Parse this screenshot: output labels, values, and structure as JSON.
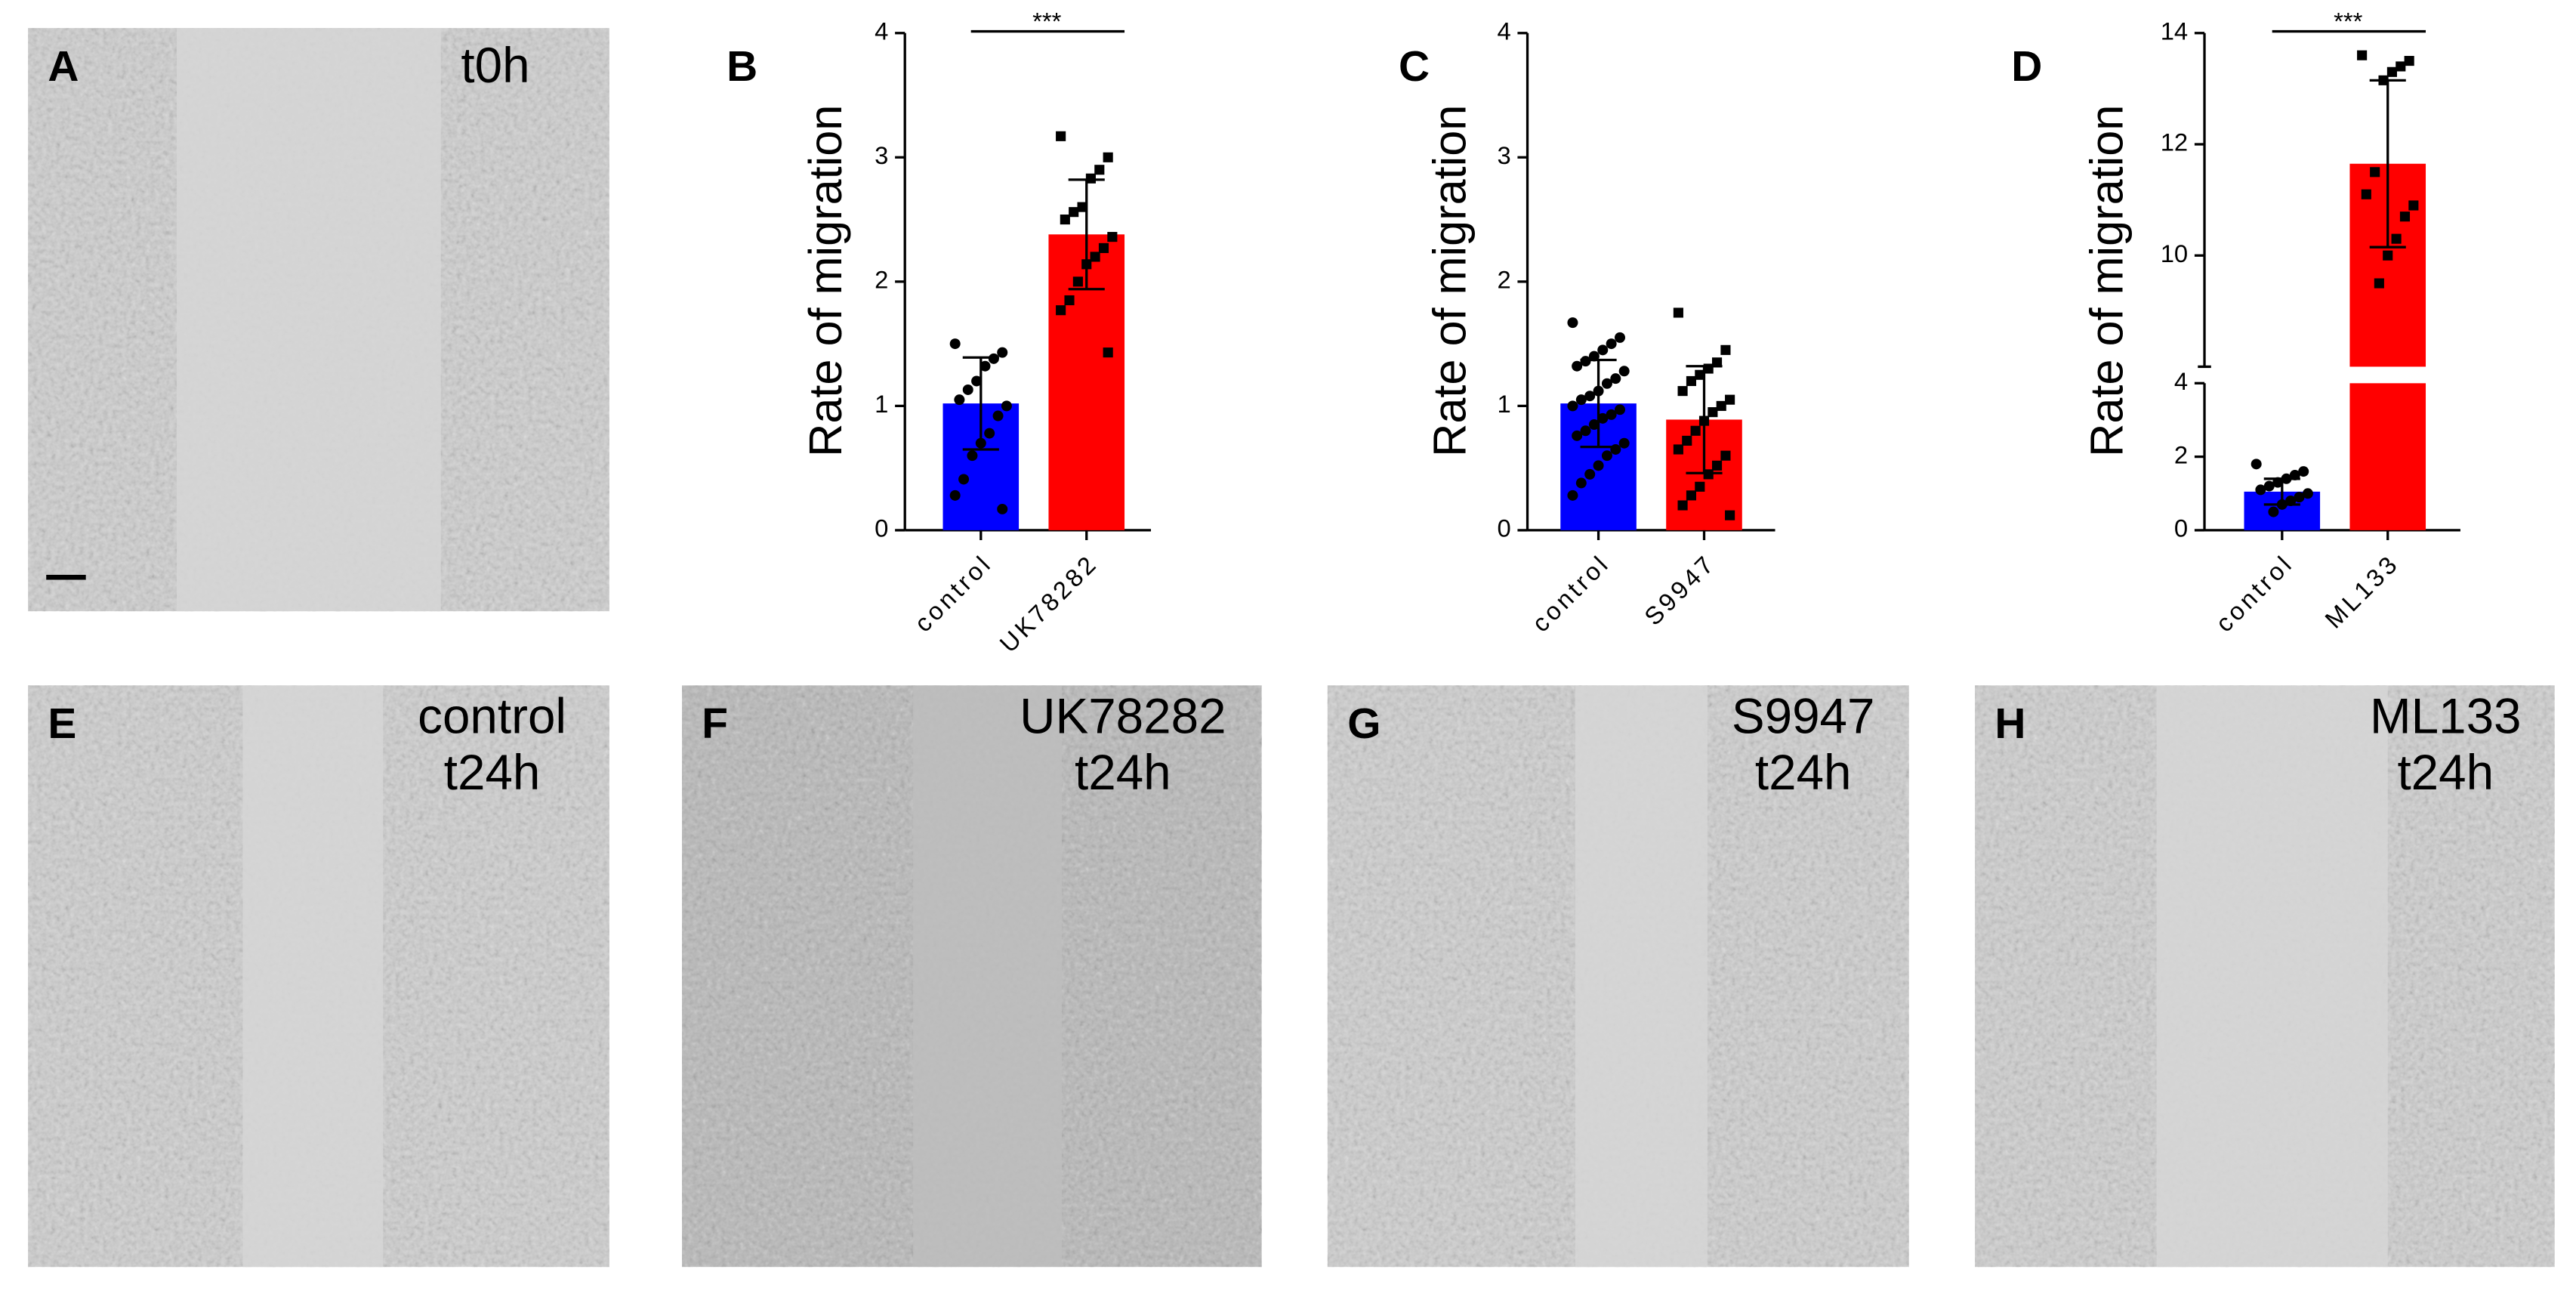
{
  "chart_data": [
    {
      "type": "bar",
      "panel": "B",
      "y_title": "Rate of migration",
      "categories": [
        "control",
        "UK78282"
      ],
      "values": [
        1.02,
        2.38
      ],
      "errors": [
        0.37,
        0.44
      ],
      "colors": [
        "#0000ff",
        "#ff0000"
      ],
      "markers": [
        "circle",
        "square"
      ],
      "points": [
        [
          1.5,
          1.43,
          1.38,
          1.32,
          1.2,
          1.13,
          1.05,
          1.0,
          0.92,
          0.78,
          0.7,
          0.6,
          0.41,
          0.28,
          0.17
        ],
        [
          3.17,
          3.0,
          2.9,
          2.83,
          2.6,
          2.56,
          2.5,
          2.36,
          2.27,
          2.2,
          2.14,
          2.0,
          1.85,
          1.77,
          1.43
        ]
      ],
      "significance": "***",
      "ylim": [
        0,
        4
      ],
      "yticks": [
        0,
        1,
        2,
        3,
        4
      ]
    },
    {
      "type": "bar",
      "panel": "C",
      "y_title": "Rate of migration",
      "categories": [
        "control",
        "S9947"
      ],
      "values": [
        1.02,
        0.89
      ],
      "errors": [
        0.35,
        0.43
      ],
      "colors": [
        "#0000ff",
        "#ff0000"
      ],
      "markers": [
        "circle",
        "square"
      ],
      "points": [
        [
          1.67,
          1.55,
          1.5,
          1.45,
          1.4,
          1.36,
          1.32,
          1.28,
          1.22,
          1.18,
          1.12,
          1.08,
          1.05,
          1.0,
          0.97,
          0.93,
          0.9,
          0.85,
          0.8,
          0.76,
          0.7,
          0.65,
          0.6,
          0.52,
          0.45,
          0.38,
          0.28
        ],
        [
          1.75,
          1.45,
          1.35,
          1.3,
          1.25,
          1.2,
          1.12,
          1.05,
          1.0,
          0.95,
          0.88,
          0.8,
          0.72,
          0.65,
          0.6,
          0.52,
          0.45,
          0.35,
          0.28,
          0.2,
          0.12
        ]
      ],
      "ylim": [
        0,
        4
      ],
      "yticks": [
        0,
        1,
        2,
        3,
        4
      ]
    },
    {
      "type": "bar",
      "panel": "D",
      "y_title": "Rate of migration",
      "categories": [
        "control",
        "ML133"
      ],
      "values": [
        1.05,
        11.65
      ],
      "errors": [
        0.35,
        1.5
      ],
      "colors": [
        "#0000ff",
        "#ff0000"
      ],
      "markers": [
        "circle",
        "square"
      ],
      "points": [
        [
          1.8,
          1.6,
          1.5,
          1.4,
          1.3,
          1.2,
          1.1,
          1.0,
          0.9,
          0.8,
          0.7,
          0.5
        ],
        [
          13.6,
          13.5,
          13.4,
          13.3,
          13.15,
          11.5,
          11.1,
          10.9,
          10.7,
          10.3,
          10.0,
          9.5
        ]
      ],
      "significance": "***",
      "ylim": [
        0,
        14
      ],
      "axis_break": [
        4,
        8
      ],
      "yticks": [
        0,
        2,
        4,
        10,
        12,
        14
      ]
    }
  ],
  "panels": [
    {
      "label": "A",
      "text": [
        "t0h"
      ]
    },
    {
      "label": "E",
      "text": [
        "control",
        "t24h"
      ]
    },
    {
      "label": "F",
      "text": [
        "UK78282",
        "t24h"
      ]
    },
    {
      "label": "G",
      "text": [
        "S9947",
        "t24h"
      ]
    },
    {
      "label": "H",
      "text": [
        "ML133",
        "t24h"
      ]
    }
  ]
}
